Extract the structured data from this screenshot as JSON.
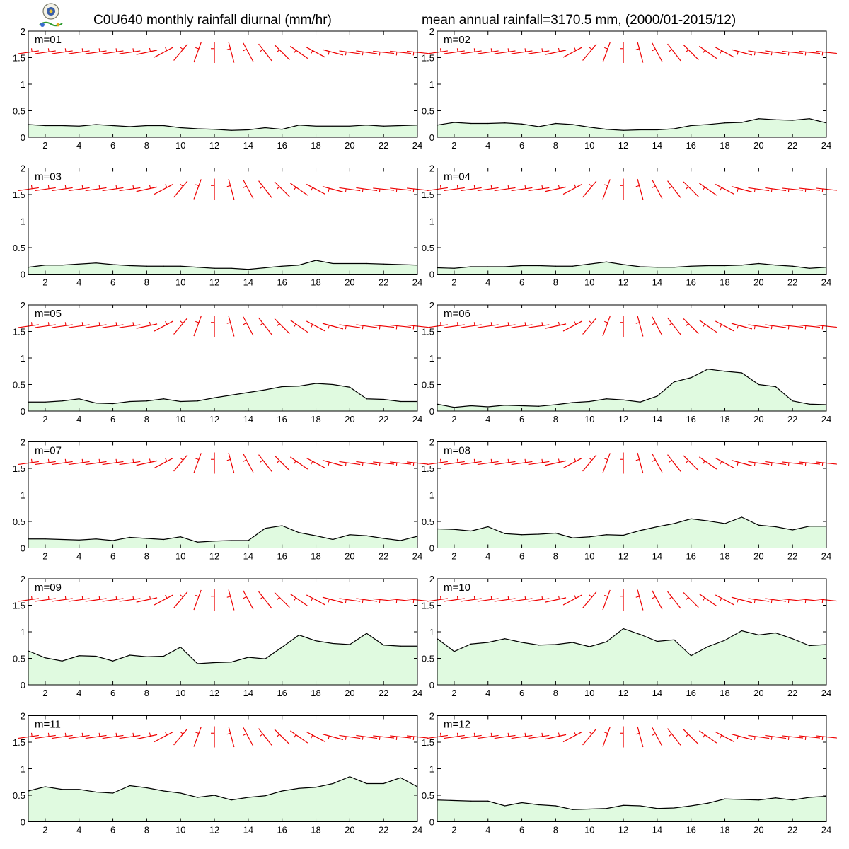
{
  "header": {
    "title_left": "C0U640 monthly rainfall diurnal (mm/hr)",
    "title_right": "mean annual rainfall=3170.5 mm, (2000/01-2015/12)"
  },
  "colors": {
    "fill": "#e0fae0",
    "line": "#000000",
    "barb": "#ee0000"
  },
  "chart_data": {
    "type": "area",
    "xlim": [
      1,
      24
    ],
    "ylim": [
      0,
      2
    ],
    "x_ticks": [
      2,
      4,
      6,
      8,
      10,
      12,
      14,
      16,
      18,
      20,
      22,
      24
    ],
    "y_ticks": [
      0,
      0.5,
      1,
      1.5,
      2
    ],
    "y_tick_labels": [
      "0",
      "0.5",
      "1",
      "1.5",
      "2"
    ],
    "barb_level": 1.6,
    "barb_glyph": "red direction barbs at hours 1-24",
    "panels": [
      {
        "label": "m=01",
        "x": [
          1,
          2,
          3,
          4,
          5,
          6,
          7,
          8,
          9,
          10,
          11,
          12,
          13,
          14,
          15,
          16,
          17,
          18,
          19,
          20,
          21,
          22,
          23,
          24
        ],
        "values": [
          0.24,
          0.22,
          0.22,
          0.21,
          0.24,
          0.22,
          0.2,
          0.22,
          0.22,
          0.18,
          0.16,
          0.15,
          0.13,
          0.14,
          0.18,
          0.15,
          0.23,
          0.21,
          0.21,
          0.21,
          0.23,
          0.21,
          0.22,
          0.23
        ]
      },
      {
        "label": "m=02",
        "x": [
          1,
          2,
          3,
          4,
          5,
          6,
          7,
          8,
          9,
          10,
          11,
          12,
          13,
          14,
          15,
          16,
          17,
          18,
          19,
          20,
          21,
          22,
          23,
          24
        ],
        "values": [
          0.23,
          0.28,
          0.26,
          0.26,
          0.27,
          0.25,
          0.2,
          0.26,
          0.24,
          0.19,
          0.15,
          0.13,
          0.14,
          0.14,
          0.16,
          0.22,
          0.24,
          0.27,
          0.28,
          0.35,
          0.33,
          0.32,
          0.35,
          0.27
        ]
      },
      {
        "label": "m=03",
        "x": [
          1,
          2,
          3,
          4,
          5,
          6,
          7,
          8,
          9,
          10,
          11,
          12,
          13,
          14,
          15,
          16,
          17,
          18,
          19,
          20,
          21,
          22,
          23,
          24
        ],
        "values": [
          0.13,
          0.17,
          0.17,
          0.19,
          0.21,
          0.18,
          0.16,
          0.15,
          0.15,
          0.15,
          0.13,
          0.11,
          0.11,
          0.09,
          0.12,
          0.15,
          0.17,
          0.26,
          0.2,
          0.2,
          0.2,
          0.19,
          0.18,
          0.17
        ]
      },
      {
        "label": "m=04",
        "x": [
          1,
          2,
          3,
          4,
          5,
          6,
          7,
          8,
          9,
          10,
          11,
          12,
          13,
          14,
          15,
          16,
          17,
          18,
          19,
          20,
          21,
          22,
          23,
          24
        ],
        "values": [
          0.12,
          0.11,
          0.14,
          0.14,
          0.14,
          0.16,
          0.16,
          0.15,
          0.15,
          0.19,
          0.23,
          0.18,
          0.14,
          0.13,
          0.13,
          0.15,
          0.16,
          0.16,
          0.17,
          0.2,
          0.17,
          0.15,
          0.11,
          0.13
        ]
      },
      {
        "label": "m=05",
        "x": [
          1,
          2,
          3,
          4,
          5,
          6,
          7,
          8,
          9,
          10,
          11,
          12,
          13,
          14,
          15,
          16,
          17,
          18,
          19,
          20,
          21,
          22,
          23,
          24
        ],
        "values": [
          0.17,
          0.17,
          0.19,
          0.23,
          0.15,
          0.14,
          0.18,
          0.19,
          0.23,
          0.18,
          0.19,
          0.25,
          0.3,
          0.35,
          0.4,
          0.46,
          0.47,
          0.52,
          0.5,
          0.45,
          0.23,
          0.22,
          0.18,
          0.18
        ]
      },
      {
        "label": "m=06",
        "x": [
          1,
          2,
          3,
          4,
          5,
          6,
          7,
          8,
          9,
          10,
          11,
          12,
          13,
          14,
          15,
          16,
          17,
          18,
          19,
          20,
          21,
          22,
          23,
          24
        ],
        "values": [
          0.13,
          0.07,
          0.1,
          0.08,
          0.11,
          0.1,
          0.09,
          0.12,
          0.16,
          0.18,
          0.23,
          0.21,
          0.17,
          0.28,
          0.55,
          0.63,
          0.79,
          0.75,
          0.72,
          0.5,
          0.46,
          0.19,
          0.13,
          0.12
        ]
      },
      {
        "label": "m=07",
        "x": [
          1,
          2,
          3,
          4,
          5,
          6,
          7,
          8,
          9,
          10,
          11,
          12,
          13,
          14,
          15,
          16,
          17,
          18,
          19,
          20,
          21,
          22,
          23,
          24
        ],
        "values": [
          0.17,
          0.17,
          0.16,
          0.15,
          0.17,
          0.14,
          0.2,
          0.18,
          0.16,
          0.21,
          0.11,
          0.13,
          0.14,
          0.14,
          0.37,
          0.42,
          0.29,
          0.23,
          0.16,
          0.25,
          0.23,
          0.18,
          0.14,
          0.22
        ]
      },
      {
        "label": "m=08",
        "x": [
          1,
          2,
          3,
          4,
          5,
          6,
          7,
          8,
          9,
          10,
          11,
          12,
          13,
          14,
          15,
          16,
          17,
          18,
          19,
          20,
          21,
          22,
          23,
          24
        ],
        "values": [
          0.36,
          0.35,
          0.32,
          0.4,
          0.27,
          0.25,
          0.26,
          0.28,
          0.19,
          0.21,
          0.25,
          0.24,
          0.33,
          0.4,
          0.46,
          0.55,
          0.51,
          0.46,
          0.58,
          0.43,
          0.4,
          0.34,
          0.41,
          0.41
        ]
      },
      {
        "label": "m=09",
        "x": [
          1,
          2,
          3,
          4,
          5,
          6,
          7,
          8,
          9,
          10,
          11,
          12,
          13,
          14,
          15,
          16,
          17,
          18,
          19,
          20,
          21,
          22,
          23,
          24
        ],
        "values": [
          0.64,
          0.51,
          0.45,
          0.55,
          0.54,
          0.45,
          0.56,
          0.53,
          0.54,
          0.71,
          0.4,
          0.42,
          0.43,
          0.52,
          0.49,
          0.71,
          0.94,
          0.83,
          0.78,
          0.76,
          0.97,
          0.75,
          0.73,
          0.73
        ]
      },
      {
        "label": "m=10",
        "x": [
          1,
          2,
          3,
          4,
          5,
          6,
          7,
          8,
          9,
          10,
          11,
          12,
          13,
          14,
          15,
          16,
          17,
          18,
          19,
          20,
          21,
          22,
          23,
          24
        ],
        "values": [
          0.87,
          0.63,
          0.77,
          0.8,
          0.87,
          0.8,
          0.75,
          0.76,
          0.8,
          0.72,
          0.81,
          1.06,
          0.95,
          0.82,
          0.85,
          0.55,
          0.72,
          0.84,
          1.02,
          0.94,
          0.98,
          0.87,
          0.74,
          0.76
        ]
      },
      {
        "label": "m=11",
        "x": [
          1,
          2,
          3,
          4,
          5,
          6,
          7,
          8,
          9,
          10,
          11,
          12,
          13,
          14,
          15,
          16,
          17,
          18,
          19,
          20,
          21,
          22,
          23,
          24
        ],
        "values": [
          0.58,
          0.66,
          0.61,
          0.61,
          0.56,
          0.54,
          0.68,
          0.64,
          0.58,
          0.54,
          0.46,
          0.5,
          0.41,
          0.46,
          0.49,
          0.58,
          0.63,
          0.65,
          0.72,
          0.85,
          0.72,
          0.72,
          0.83,
          0.66
        ]
      },
      {
        "label": "m=12",
        "x": [
          1,
          2,
          3,
          4,
          5,
          6,
          7,
          8,
          9,
          10,
          11,
          12,
          13,
          14,
          15,
          16,
          17,
          18,
          19,
          20,
          21,
          22,
          23,
          24
        ],
        "values": [
          0.41,
          0.4,
          0.39,
          0.39,
          0.3,
          0.36,
          0.32,
          0.3,
          0.23,
          0.24,
          0.25,
          0.31,
          0.3,
          0.25,
          0.26,
          0.3,
          0.35,
          0.43,
          0.42,
          0.41,
          0.45,
          0.41,
          0.46,
          0.48
        ]
      }
    ]
  }
}
